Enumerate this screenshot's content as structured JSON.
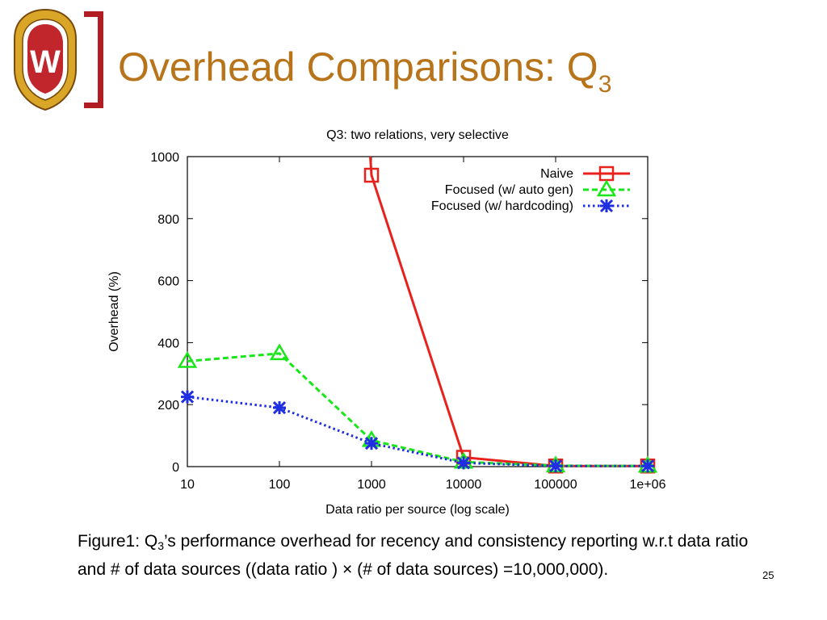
{
  "slide": {
    "title_main": "Overhead Comparisons: Q",
    "title_sub": "3",
    "caption_pre": "Figure1: Q",
    "caption_sub": "3",
    "caption_post": "’s performance overhead for recency and consistency reporting w.r.t data ratio and # of data sources ((data ratio ) × (# of data sources) =10,000,000).",
    "page_number": "25",
    "logo_letter": "W",
    "colors": {
      "title": "#b8741a",
      "bracket": "#b01e23"
    }
  },
  "chart_data": {
    "type": "line",
    "title": "Q3: two relations, very selective",
    "xlabel": "Data ratio per source (log scale)",
    "ylabel": "Overhead (%)",
    "x_scale": "log",
    "x": [
      10,
      100,
      1000,
      10000,
      100000,
      1000000
    ],
    "x_tick_labels": [
      "10",
      "100",
      "1000",
      "10000",
      "100000",
      "1e+06"
    ],
    "ylim": [
      0,
      1000
    ],
    "y_ticks": [
      0,
      200,
      400,
      600,
      800,
      1000
    ],
    "grid": false,
    "legend_position": "top-right",
    "series": [
      {
        "name": "Naive",
        "color": "#e8211c",
        "marker": "square",
        "style": "solid",
        "points": [
          [
            1000,
            940
          ],
          [
            10000,
            30
          ],
          [
            100000,
            2
          ],
          [
            1000000,
            2
          ]
        ],
        "offscale_from": [
          800,
          1000
        ]
      },
      {
        "name": "Focused (w/ auto gen)",
        "color": "#19e619",
        "marker": "triangle",
        "style": "dashed",
        "points": [
          [
            10,
            340
          ],
          [
            100,
            365
          ],
          [
            1000,
            85
          ],
          [
            10000,
            15
          ],
          [
            100000,
            3
          ],
          [
            1000000,
            2
          ]
        ]
      },
      {
        "name": "Focused (w/ hardcoding)",
        "color": "#1f2ee0",
        "marker": "star",
        "style": "dotted",
        "points": [
          [
            10,
            225
          ],
          [
            100,
            190
          ],
          [
            1000,
            75
          ],
          [
            10000,
            12
          ],
          [
            100000,
            2
          ],
          [
            1000000,
            2
          ]
        ]
      }
    ]
  }
}
